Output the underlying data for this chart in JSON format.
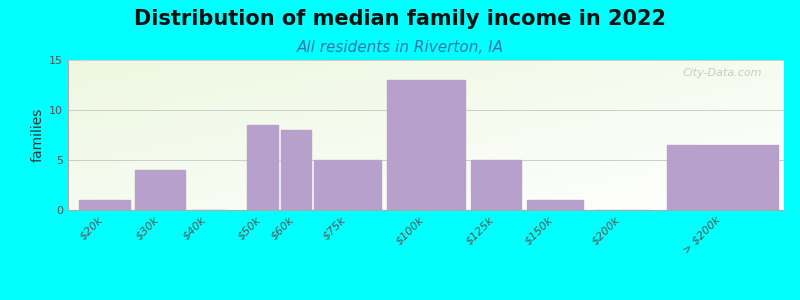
{
  "title": "Distribution of median family income in 2022",
  "subtitle": "All residents in Riverton, IA",
  "ylabel": "families",
  "background_color": "#00FFFF",
  "bar_color": "#b8a0cc",
  "categories": [
    "$20k",
    "$30k",
    "$40k",
    "$50k",
    "$60k",
    "$75k",
    "$100k",
    "$125k",
    "$150k",
    "$200k",
    "> $200k"
  ],
  "values": [
    1,
    4,
    0,
    8.5,
    8,
    5,
    13,
    5,
    1,
    0,
    6.5
  ],
  "bar_lefts": [
    0,
    1,
    2,
    3,
    3.6,
    4.2,
    5.5,
    7.0,
    8.0,
    9.2,
    10.5
  ],
  "bar_widths": [
    0.9,
    0.9,
    0.6,
    0.55,
    0.55,
    1.2,
    1.4,
    0.9,
    1.0,
    1.0,
    2.0
  ],
  "xlim": [
    -0.2,
    12.6
  ],
  "ylim": [
    0,
    15
  ],
  "yticks": [
    0,
    5,
    10,
    15
  ],
  "title_fontsize": 15,
  "subtitle_fontsize": 11,
  "ylabel_fontsize": 10,
  "tick_fontsize": 8,
  "watermark": "City-Data.com"
}
